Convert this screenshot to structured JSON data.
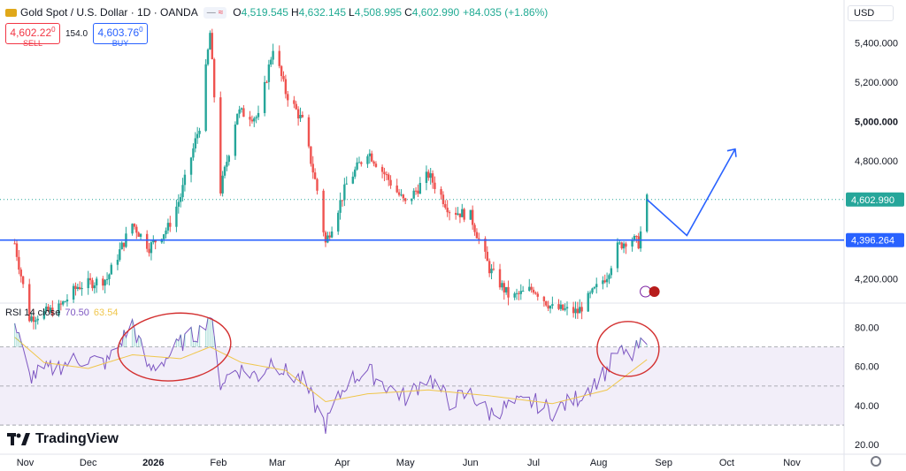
{
  "header": {
    "title": "Gold Spot / U.S. Dollar · 1D · OANDA",
    "ohlc": [
      {
        "key": "O",
        "value": "4,519.545"
      },
      {
        "key": "H",
        "value": "4,632.145"
      },
      {
        "key": "L",
        "value": "4,508.995"
      },
      {
        "key": "C",
        "value": "4,602.990"
      }
    ],
    "change": "+84.035 (+1.86%)"
  },
  "trade": {
    "sell_price": "4,602.22",
    "sell_sup": "0",
    "sell_label": "SELL",
    "spread": "154.0",
    "buy_price": "4,603.76",
    "buy_sup": "0",
    "buy_label": "BUY"
  },
  "currency": "USD",
  "rsi_legend": {
    "name": "RSI 14 close",
    "rsi": "70.50",
    "ma": "63.54"
  },
  "brand": "TradingView",
  "colors": {
    "up": "#26a69a",
    "down": "#ef5350",
    "line": "#2962ff",
    "rsi": "#7e57c2",
    "rsi_ma": "#f0c64b",
    "annotation": "#d32f2f"
  },
  "chart_data": [
    {
      "type": "candlestick",
      "title": "Gold Spot / U.S. Dollar · 1D · OANDA",
      "x_ticks": [
        "Nov",
        "Dec",
        "2026",
        "Feb",
        "Mar",
        "Apr",
        "May",
        "Jun",
        "Jul",
        "Aug",
        "Sep",
        "Oct",
        "Nov"
      ],
      "y_ticks": [
        "4,200.000",
        "4,400.000",
        "4,600.000",
        "4,800.000",
        "5,000.000",
        "5,200.000",
        "5,400.000"
      ],
      "ylim": [
        4080,
        5520
      ],
      "last_price_label": "4,602.990",
      "horizontal_line": {
        "value": 4396.264,
        "label": "4,396.264"
      },
      "close_path": [
        {
          "date": "2025-10-27",
          "close": 4380
        },
        {
          "date": "2025-11-03",
          "close": 4000
        },
        {
          "date": "2025-11-17",
          "close": 4050
        },
        {
          "date": "2025-11-26",
          "close": 4160
        },
        {
          "date": "2025-12-10",
          "close": 4200
        },
        {
          "date": "2025-12-22",
          "close": 4480
        },
        {
          "date": "2025-12-30",
          "close": 4360
        },
        {
          "date": "2026-01-08",
          "close": 4460
        },
        {
          "date": "2026-01-14",
          "close": 4620
        },
        {
          "date": "2026-01-23",
          "close": 4980
        },
        {
          "date": "2026-01-28",
          "close": 5450
        },
        {
          "date": "2026-02-02",
          "close": 4650
        },
        {
          "date": "2026-02-10",
          "close": 5050
        },
        {
          "date": "2026-02-20",
          "close": 5020
        },
        {
          "date": "2026-02-27",
          "close": 5380
        },
        {
          "date": "2026-03-05",
          "close": 5150
        },
        {
          "date": "2026-03-13",
          "close": 5000
        },
        {
          "date": "2026-03-20",
          "close": 4650
        },
        {
          "date": "2026-03-24",
          "close": 4380
        },
        {
          "date": "2026-04-03",
          "close": 4680
        },
        {
          "date": "2026-04-13",
          "close": 4850
        },
        {
          "date": "2026-04-22",
          "close": 4720
        },
        {
          "date": "2026-05-01",
          "close": 4580
        },
        {
          "date": "2026-05-12",
          "close": 4730
        },
        {
          "date": "2026-05-22",
          "close": 4550
        },
        {
          "date": "2026-06-01",
          "close": 4520
        },
        {
          "date": "2026-06-10",
          "close": 4250
        },
        {
          "date": "2026-06-20",
          "close": 4100
        },
        {
          "date": "2026-07-01",
          "close": 4150
        },
        {
          "date": "2026-07-10",
          "close": 4050
        },
        {
          "date": "2026-07-22",
          "close": 4030
        },
        {
          "date": "2026-08-05",
          "close": 4220
        },
        {
          "date": "2026-08-10",
          "close": 4360
        },
        {
          "date": "2026-08-16",
          "close": 4410
        },
        {
          "date": "2026-08-20",
          "close": 4380
        },
        {
          "date": "2026-08-24",
          "close": 4603
        }
      ],
      "projection": [
        {
          "date": "2026-08-24",
          "value": 4603
        },
        {
          "date": "2026-09-12",
          "value": 4420
        },
        {
          "date": "2026-10-05",
          "value": 4860
        }
      ]
    },
    {
      "type": "line",
      "title": "RSI 14 close",
      "ylim": [
        16,
        92
      ],
      "y_ticks": [
        "20.00",
        "40.00",
        "60.00",
        "80.00"
      ],
      "bands": [
        30,
        50,
        70
      ],
      "series": [
        {
          "name": "RSI",
          "points": [
            {
              "date": "2025-10-27",
              "value": 82
            },
            {
              "date": "2025-11-03",
              "value": 55
            },
            {
              "date": "2025-11-17",
              "value": 60
            },
            {
              "date": "2025-11-26",
              "value": 64
            },
            {
              "date": "2025-12-10",
              "value": 62
            },
            {
              "date": "2025-12-22",
              "value": 82
            },
            {
              "date": "2025-12-30",
              "value": 58
            },
            {
              "date": "2026-01-08",
              "value": 65
            },
            {
              "date": "2026-01-14",
              "value": 72
            },
            {
              "date": "2026-01-23",
              "value": 78
            },
            {
              "date": "2026-01-28",
              "value": 87
            },
            {
              "date": "2026-02-02",
              "value": 52
            },
            {
              "date": "2026-02-10",
              "value": 59
            },
            {
              "date": "2026-02-20",
              "value": 55
            },
            {
              "date": "2026-02-27",
              "value": 64
            },
            {
              "date": "2026-03-05",
              "value": 57
            },
            {
              "date": "2026-03-13",
              "value": 53
            },
            {
              "date": "2026-03-20",
              "value": 38
            },
            {
              "date": "2026-03-24",
              "value": 30
            },
            {
              "date": "2026-04-03",
              "value": 52
            },
            {
              "date": "2026-04-13",
              "value": 58
            },
            {
              "date": "2026-04-22",
              "value": 50
            },
            {
              "date": "2026-05-01",
              "value": 44
            },
            {
              "date": "2026-05-12",
              "value": 55
            },
            {
              "date": "2026-05-22",
              "value": 42
            },
            {
              "date": "2026-06-01",
              "value": 46
            },
            {
              "date": "2026-06-10",
              "value": 36
            },
            {
              "date": "2026-06-20",
              "value": 40
            },
            {
              "date": "2026-07-01",
              "value": 42
            },
            {
              "date": "2026-07-10",
              "value": 37
            },
            {
              "date": "2026-07-22",
              "value": 44
            },
            {
              "date": "2026-08-05",
              "value": 58
            },
            {
              "date": "2026-08-10",
              "value": 68
            },
            {
              "date": "2026-08-16",
              "value": 64
            },
            {
              "date": "2026-08-20",
              "value": 70
            },
            {
              "date": "2026-08-24",
              "value": 70.5
            }
          ]
        },
        {
          "name": "RSI MA",
          "points": [
            {
              "date": "2025-10-27",
              "value": 75
            },
            {
              "date": "2025-11-10",
              "value": 62
            },
            {
              "date": "2025-12-01",
              "value": 59
            },
            {
              "date": "2025-12-22",
              "value": 66
            },
            {
              "date": "2026-01-14",
              "value": 64
            },
            {
              "date": "2026-01-28",
              "value": 70
            },
            {
              "date": "2026-02-12",
              "value": 62
            },
            {
              "date": "2026-03-05",
              "value": 58
            },
            {
              "date": "2026-03-24",
              "value": 42
            },
            {
              "date": "2026-04-13",
              "value": 46
            },
            {
              "date": "2026-05-12",
              "value": 48
            },
            {
              "date": "2026-06-10",
              "value": 45
            },
            {
              "date": "2026-07-10",
              "value": 41
            },
            {
              "date": "2026-08-05",
              "value": 48
            },
            {
              "date": "2026-08-24",
              "value": 63.54
            }
          ]
        }
      ]
    }
  ]
}
